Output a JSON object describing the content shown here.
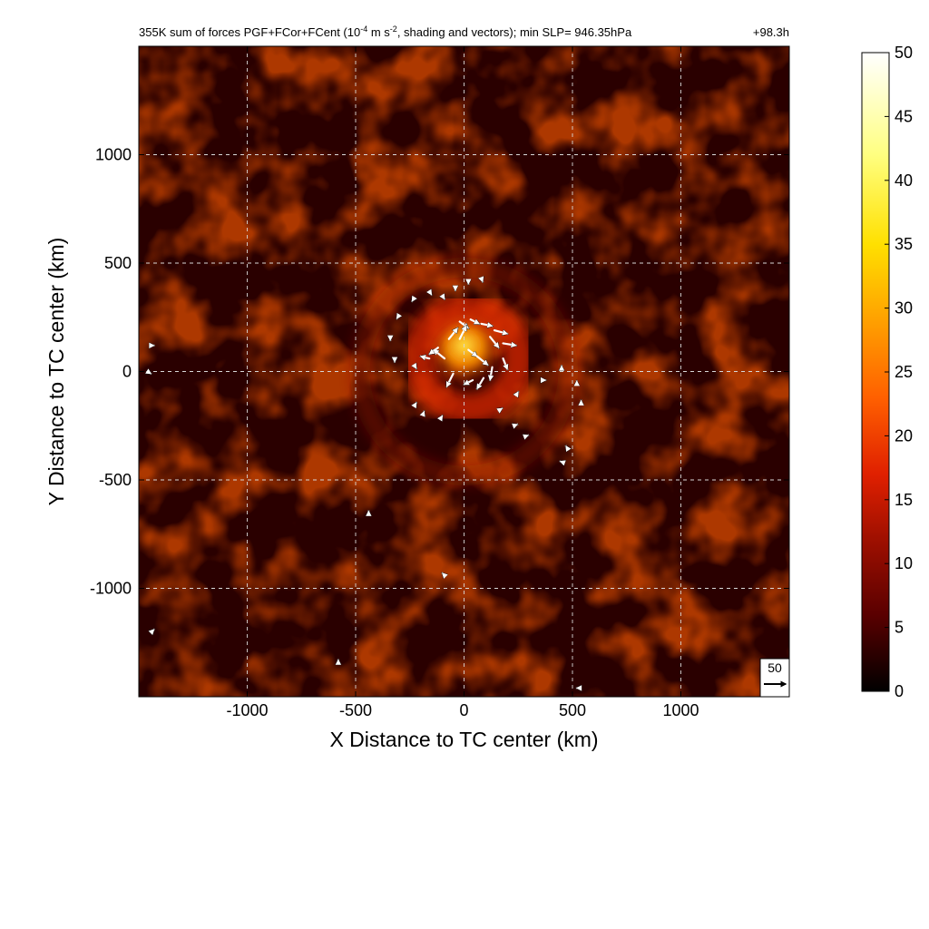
{
  "chart_data": {
    "type": "heatmap",
    "title_parts": [
      "355K sum of forces PGF+FCor+FCent (10",
      "-4",
      " m s",
      "-2",
      ", shading and vectors); min SLP= 946.35hPa"
    ],
    "time_label": "+98.3h",
    "xlabel": "X Distance to TC center (km)",
    "ylabel": "Y Distance to TC center (km)",
    "xlim": [
      -1500,
      1500
    ],
    "ylim": [
      -1500,
      1500
    ],
    "xticks": [
      -1000,
      -500,
      0,
      500,
      1000
    ],
    "yticks": [
      -1000,
      -500,
      0,
      500,
      1000
    ],
    "xtick_labels": [
      "-1000",
      "-500",
      "0",
      "500",
      "1000"
    ],
    "ytick_labels": [
      "-1000",
      "-500",
      "0",
      "500",
      "1000"
    ],
    "grid": true,
    "colorbar": {
      "range": [
        0,
        50
      ],
      "ticks": [
        0,
        5,
        10,
        15,
        20,
        25,
        30,
        35,
        40,
        45,
        50
      ],
      "tick_labels": [
        "0",
        "5",
        "10",
        "15",
        "20",
        "25",
        "30",
        "35",
        "40",
        "45",
        "50"
      ],
      "colormap": [
        "#000000",
        "#5a0000",
        "#a01000",
        "#e02000",
        "#ff6000",
        "#ffa000",
        "#ffe000",
        "#ffff80",
        "#ffffff"
      ]
    },
    "reference_vector": {
      "magnitude": 50,
      "label": "50"
    },
    "field_features": [
      {
        "kind": "core",
        "x": 0,
        "y": 120,
        "value": 40
      },
      {
        "kind": "ring",
        "center": [
          20,
          60
        ],
        "radius": 230,
        "value": 14
      },
      {
        "kind": "spiral_band",
        "center": [
          0,
          0
        ],
        "radius": 480,
        "value": 8
      },
      {
        "kind": "background",
        "value": 5
      }
    ],
    "vectors": [
      {
        "x": -20,
        "y": 230,
        "u": 20,
        "v": -15
      },
      {
        "x": 30,
        "y": 240,
        "u": 20,
        "v": -10
      },
      {
        "x": 80,
        "y": 220,
        "u": 25,
        "v": -5
      },
      {
        "x": 140,
        "y": 190,
        "u": 30,
        "v": -8
      },
      {
        "x": 180,
        "y": 130,
        "u": 30,
        "v": -5
      },
      {
        "x": 180,
        "y": 60,
        "u": 10,
        "v": -25
      },
      {
        "x": 130,
        "y": 20,
        "u": -5,
        "v": -30
      },
      {
        "x": 90,
        "y": -30,
        "u": -15,
        "v": -25
      },
      {
        "x": 40,
        "y": -40,
        "u": -20,
        "v": -10
      },
      {
        "x": -50,
        "y": -10,
        "u": -15,
        "v": -30
      },
      {
        "x": -90,
        "y": 60,
        "u": -25,
        "v": 20
      },
      {
        "x": -70,
        "y": 150,
        "u": 20,
        "v": 25
      },
      {
        "x": -20,
        "y": 150,
        "u": 15,
        "v": 30
      },
      {
        "x": 20,
        "y": 100,
        "u": 20,
        "v": -15
      },
      {
        "x": -120,
        "y": 110,
        "u": -20,
        "v": -15
      },
      {
        "x": -160,
        "y": 60,
        "u": -20,
        "v": 5
      },
      {
        "x": 60,
        "y": 70,
        "u": 25,
        "v": -20
      },
      {
        "x": 120,
        "y": 160,
        "u": 20,
        "v": -25
      },
      {
        "x": -230,
        "y": 340,
        "u": -5,
        "v": -8
      },
      {
        "x": -160,
        "y": 370,
        "u": 5,
        "v": -8
      },
      {
        "x": -100,
        "y": 350,
        "u": 5,
        "v": -8
      },
      {
        "x": -40,
        "y": 390,
        "u": 0,
        "v": -8
      },
      {
        "x": 20,
        "y": 420,
        "u": 0,
        "v": -8
      },
      {
        "x": 80,
        "y": 430,
        "u": 3,
        "v": -8
      },
      {
        "x": -300,
        "y": 260,
        "u": -5,
        "v": -8
      },
      {
        "x": -340,
        "y": 160,
        "u": 0,
        "v": -8
      },
      {
        "x": -320,
        "y": 60,
        "u": 0,
        "v": -8
      },
      {
        "x": -230,
        "y": 30,
        "u": 5,
        "v": -8
      },
      {
        "x": -230,
        "y": -160,
        "u": 5,
        "v": 8
      },
      {
        "x": -190,
        "y": -200,
        "u": 3,
        "v": 8
      },
      {
        "x": -110,
        "y": -220,
        "u": 5,
        "v": 8
      },
      {
        "x": 160,
        "y": -180,
        "u": 8,
        "v": 5
      },
      {
        "x": 230,
        "y": -250,
        "u": 8,
        "v": 3
      },
      {
        "x": 280,
        "y": -300,
        "u": 8,
        "v": 3
      },
      {
        "x": 240,
        "y": -110,
        "u": 5,
        "v": 8
      },
      {
        "x": 360,
        "y": -40,
        "u": 8,
        "v": 0
      },
      {
        "x": 520,
        "y": -60,
        "u": 0,
        "v": 8
      },
      {
        "x": 540,
        "y": -150,
        "u": 0,
        "v": 8
      },
      {
        "x": 480,
        "y": -360,
        "u": -5,
        "v": 8
      },
      {
        "x": 460,
        "y": -420,
        "u": -8,
        "v": 3
      },
      {
        "x": 450,
        "y": 10,
        "u": 0,
        "v": 8
      },
      {
        "x": -1460,
        "y": 0,
        "u": 8,
        "v": -5
      },
      {
        "x": -1440,
        "y": 120,
        "u": 5,
        "v": 0
      },
      {
        "x": -440,
        "y": -660,
        "u": 0,
        "v": 8
      },
      {
        "x": -90,
        "y": -940,
        "u": -5,
        "v": 5
      },
      {
        "x": -580,
        "y": -1340,
        "u": 0,
        "v": 5
      },
      {
        "x": -1440,
        "y": -1200,
        "u": 5,
        "v": 5
      },
      {
        "x": 530,
        "y": -1460,
        "u": -5,
        "v": 0
      }
    ]
  }
}
